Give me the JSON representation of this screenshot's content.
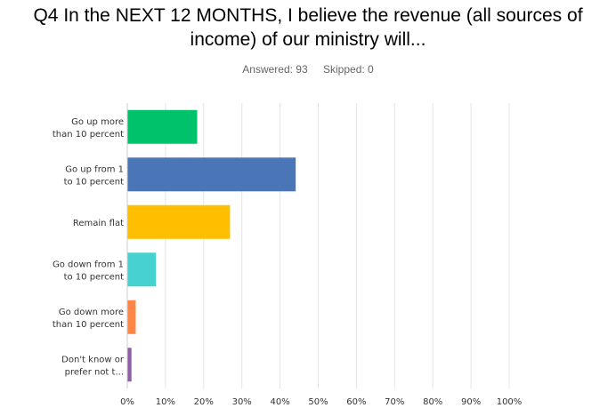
{
  "question": {
    "title_line1": "Q4 In the NEXT 12 MONTHS, I believe the revenue (all sources of",
    "title_line2": "income) of our ministry will..."
  },
  "stats": {
    "answered": "Answered: 93",
    "skipped": "Skipped: 0"
  },
  "chart_data": {
    "type": "bar",
    "orientation": "horizontal",
    "categories": [
      [
        "Go up more",
        "than 10 percent"
      ],
      [
        "Go up from 1",
        "to 10 percent"
      ],
      [
        "Remain flat"
      ],
      [
        "Go down from 1",
        "to 10 percent"
      ],
      [
        "Go down more",
        "than 10 percent"
      ],
      [
        "Don't know or",
        "prefer not t..."
      ]
    ],
    "values": [
      18.3,
      44.1,
      26.9,
      7.5,
      2.2,
      1.1
    ],
    "colors": [
      "#00c26b",
      "#4a76b8",
      "#ffbf00",
      "#48d1d1",
      "#ff8645",
      "#8e5ea8"
    ],
    "xlim": [
      0,
      100
    ],
    "xticks": [
      "0%",
      "10%",
      "20%",
      "30%",
      "40%",
      "50%",
      "60%",
      "70%",
      "80%",
      "90%",
      "100%"
    ],
    "grid": true,
    "gridColor": "#e4e4e4"
  }
}
